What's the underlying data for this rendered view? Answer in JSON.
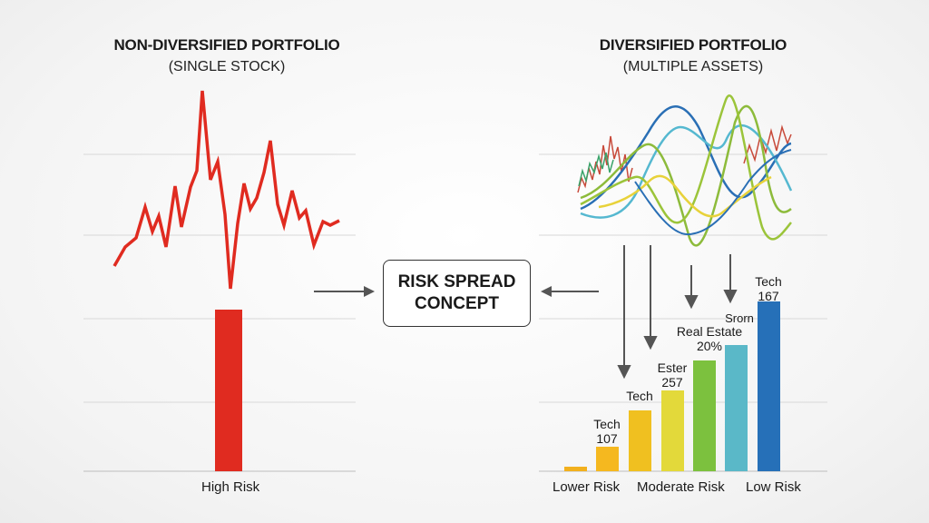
{
  "left": {
    "title": "NON-DIVERSIFIED PORTFOLIO",
    "subtitle": "(SINGLE STOCK)",
    "bar_label": "High Risk",
    "bar_color": "#e02b20"
  },
  "right": {
    "title": "DIVERSIFIED PORTFOLIO",
    "subtitle": "(MULTIPLE ASSETS)",
    "axis_labels": [
      "Lower Risk",
      "Moderate Risk",
      "Low Risk"
    ],
    "bars": [
      {
        "label1": "",
        "label2": "",
        "color": "#f2b01e"
      },
      {
        "label1": "Tech",
        "label2": "107",
        "color": "#f5b81f"
      },
      {
        "label1": "Tech",
        "label2": "",
        "color": "#f0c020"
      },
      {
        "label1": "Ester",
        "label2": "257",
        "color": "#e3d93a"
      },
      {
        "label1": "",
        "label2": "",
        "color": "#7cc13e"
      },
      {
        "label1": "Real Estate",
        "label2": "20%",
        "color": "#5ab8c8"
      },
      {
        "label1": "Tech",
        "label2": "167",
        "color": "#2670b8"
      }
    ],
    "extra_label": "Srorn"
  },
  "center": {
    "line1": "RISK SPREAD",
    "line2": "CONCEPT"
  },
  "colors": {
    "red": "#e02b20",
    "arrow": "#555555",
    "grid": "#d8d8d8"
  },
  "icons": [
    "arrow-right-icon",
    "arrow-left-icon",
    "arrow-down-icon"
  ]
}
